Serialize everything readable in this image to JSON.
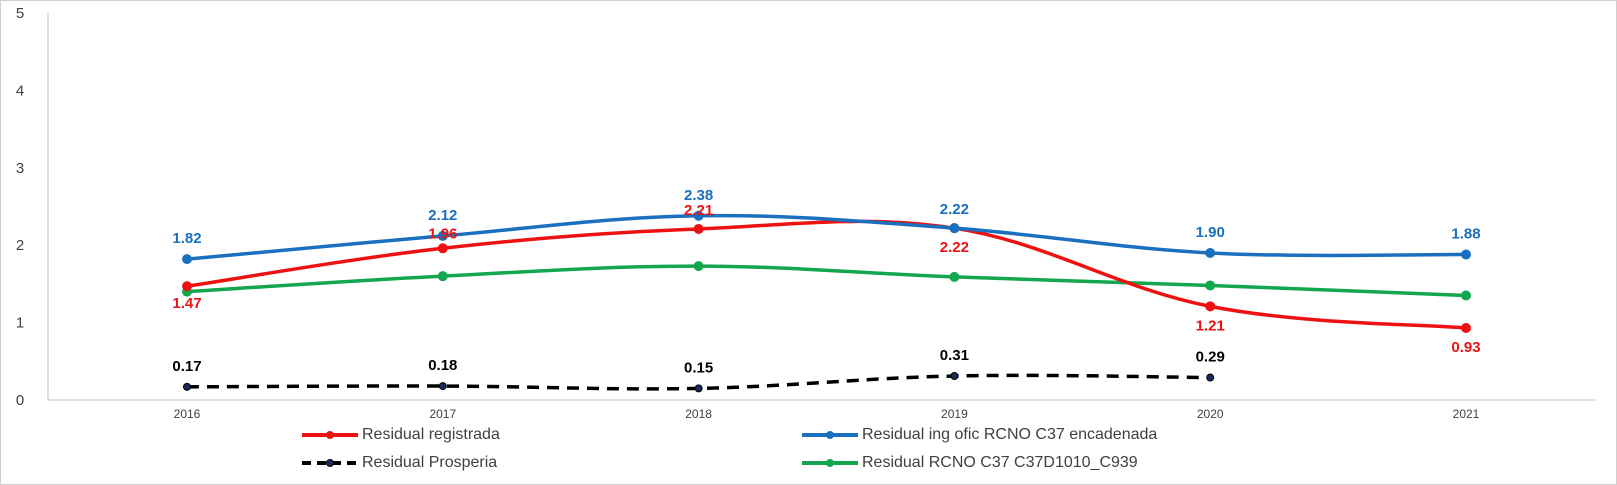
{
  "chart_data": {
    "type": "line",
    "title": "",
    "xlabel": "",
    "ylabel": "",
    "ylim": [
      0,
      5
    ],
    "yticks": [
      "0",
      "1",
      "2",
      "3",
      "4",
      "5"
    ],
    "categories": [
      "2016",
      "2017",
      "2018",
      "2019",
      "2020",
      "2021"
    ],
    "grid": false,
    "legend_position": "bottom",
    "series": [
      {
        "name": "Residual registrada",
        "color": "#ee1111",
        "style": "solid",
        "values": [
          1.47,
          1.96,
          2.21,
          2.22,
          1.21,
          0.93
        ],
        "labels": [
          "1.47",
          "1.96",
          "2.21",
          "2.22",
          "1.21",
          "0.93"
        ]
      },
      {
        "name": "Residual ing ofic RCNO C37 encadenada",
        "color": "#1a6fbf",
        "style": "solid",
        "values": [
          1.82,
          2.12,
          2.38,
          2.22,
          1.9,
          1.88
        ],
        "labels": [
          "1.82",
          "2.12",
          "2.38",
          "2.22",
          "1.90",
          "1.88"
        ]
      },
      {
        "name": "Residual Prosperia",
        "color": "#000000",
        "style": "dashed",
        "values": [
          0.17,
          0.18,
          0.15,
          0.31,
          0.29,
          null
        ],
        "labels": [
          "0.17",
          "0.18",
          "0.15",
          "0.31",
          "0.29",
          ""
        ]
      },
      {
        "name": "Residual RCNO C37 C37D1010_C939",
        "color": "#13a64e",
        "style": "solid",
        "values": [
          1.4,
          1.6,
          1.73,
          1.59,
          1.48,
          1.35
        ],
        "labels": [
          "",
          "",
          "",
          "",
          "",
          ""
        ]
      }
    ]
  }
}
